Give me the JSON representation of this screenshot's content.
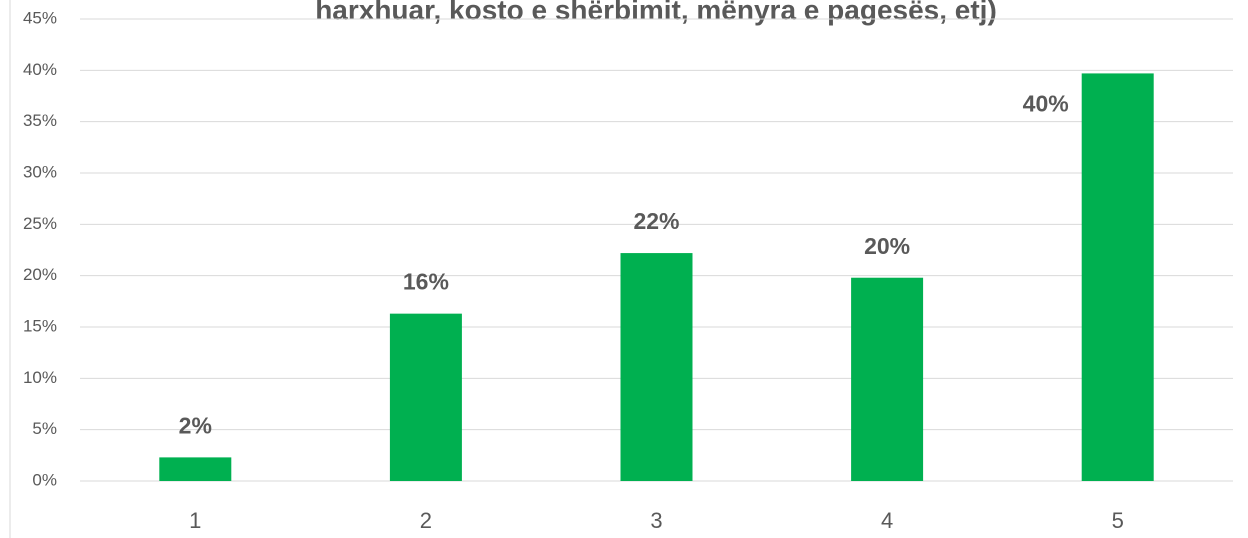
{
  "chart_data": {
    "type": "bar",
    "title": "harxhuar, kosto e shërbimit, mënyra e pagesës, etj)",
    "categories": [
      "1",
      "2",
      "3",
      "4",
      "5"
    ],
    "values": [
      2.3,
      16.3,
      22.2,
      19.8,
      39.7
    ],
    "value_labels": [
      "2%",
      "16%",
      "22%",
      "20%",
      "40%"
    ],
    "color": "#00b050",
    "ylim": [
      0,
      45
    ],
    "yticks": [
      {
        "value": 0,
        "label": "0%"
      },
      {
        "value": 5,
        "label": "5%"
      },
      {
        "value": 10,
        "label": "10%"
      },
      {
        "value": 15,
        "label": "15%"
      },
      {
        "value": 20,
        "label": "20%"
      },
      {
        "value": 25,
        "label": "25%"
      },
      {
        "value": 30,
        "label": "30%"
      },
      {
        "value": 35,
        "label": "35%"
      },
      {
        "value": 40,
        "label": "40%"
      },
      {
        "value": 45,
        "label": "45%"
      }
    ],
    "grid": true
  }
}
